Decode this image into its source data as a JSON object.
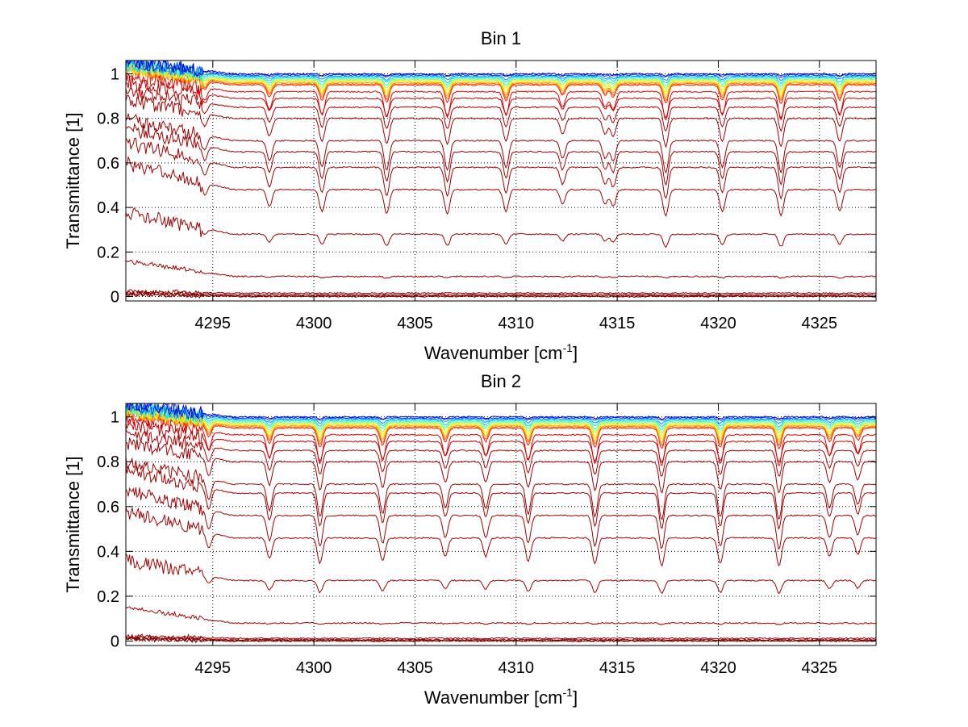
{
  "chart_data": [
    {
      "type": "line",
      "title": "Bin 1",
      "xlabel": "Wavenumber [cm",
      "xlabel_sup": "-1",
      "xlabel_end": "]",
      "ylabel": "Transmittance [1]",
      "xlim": [
        4290.7,
        4327.8
      ],
      "ylim": [
        -0.02,
        1.06
      ],
      "xticks": [
        4295,
        4300,
        4305,
        4310,
        4315,
        4320,
        4325
      ],
      "yticks": [
        0,
        0.2,
        0.4,
        0.6,
        0.8,
        1
      ],
      "grid": true,
      "series_baselines": [
        1.0,
        0.995,
        0.99,
        0.985,
        0.98,
        0.975,
        0.97,
        0.965,
        0.96,
        0.955,
        0.95,
        0.92,
        0.89,
        0.85,
        0.8,
        0.7,
        0.65,
        0.58,
        0.48,
        0.28,
        0.09,
        0.015,
        0.008,
        0.003,
        0.0
      ],
      "series_colors": [
        "#0000c8",
        "#0040ff",
        "#0090ff",
        "#00d8ff",
        "#40ffc0",
        "#90ff70",
        "#d8ff20",
        "#ffe000",
        "#ffa000",
        "#ff6000",
        "#ff2000",
        "#e00000",
        "#c00000",
        "#b00000",
        "#a00000",
        "#a00000",
        "#a00000",
        "#a00000",
        "#a00000",
        "#a00000",
        "#a00000",
        "#900000",
        "#900000",
        "#800000",
        "#800000"
      ],
      "absorption_lines": [
        4294.6,
        4297.8,
        4300.4,
        4303.6,
        4306.6,
        4309.5,
        4312.3,
        4314.4,
        4314.8,
        4317.4,
        4320.2,
        4323.1,
        4326.0
      ],
      "absorption_depths": [
        0.25,
        0.35,
        0.45,
        0.5,
        0.5,
        0.45,
        0.3,
        0.3,
        0.35,
        0.55,
        0.45,
        0.55,
        0.45
      ]
    },
    {
      "type": "line",
      "title": "Bin 2",
      "xlabel": "Wavenumber [cm",
      "xlabel_sup": "-1",
      "xlabel_end": "]",
      "ylabel": "Transmittance [1]",
      "xlim": [
        4290.7,
        4327.8
      ],
      "ylim": [
        -0.02,
        1.06
      ],
      "xticks": [
        4295,
        4300,
        4305,
        4310,
        4315,
        4320,
        4325
      ],
      "yticks": [
        0,
        0.2,
        0.4,
        0.6,
        0.8,
        1
      ],
      "grid": true,
      "series_baselines": [
        1.0,
        0.995,
        0.99,
        0.985,
        0.98,
        0.975,
        0.97,
        0.965,
        0.96,
        0.955,
        0.95,
        0.92,
        0.89,
        0.85,
        0.8,
        0.7,
        0.66,
        0.56,
        0.46,
        0.27,
        0.08,
        0.012,
        0.006,
        0.002,
        0.0
      ],
      "series_colors": [
        "#0000c8",
        "#0040ff",
        "#0090ff",
        "#00d8ff",
        "#40ffc0",
        "#90ff70",
        "#d8ff20",
        "#ffe000",
        "#ffa000",
        "#ff6000",
        "#ff2000",
        "#e00000",
        "#c00000",
        "#b00000",
        "#a00000",
        "#a00000",
        "#a00000",
        "#a00000",
        "#a00000",
        "#a00000",
        "#a00000",
        "#900000",
        "#900000",
        "#800000",
        "#800000"
      ],
      "absorption_lines": [
        4294.8,
        4297.8,
        4300.3,
        4303.4,
        4306.5,
        4308.5,
        4310.6,
        4313.9,
        4317.2,
        4320.1,
        4323.0,
        4325.5,
        4326.9
      ],
      "absorption_depths": [
        0.35,
        0.45,
        0.55,
        0.5,
        0.4,
        0.4,
        0.5,
        0.55,
        0.6,
        0.55,
        0.6,
        0.4,
        0.35
      ]
    }
  ]
}
